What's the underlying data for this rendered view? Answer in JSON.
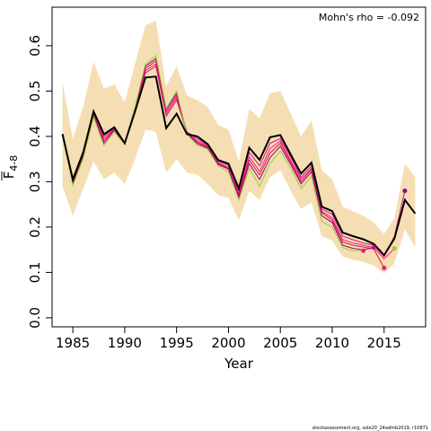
{
  "chart_data": {
    "type": "line",
    "ylabel_main": "F",
    "ylabel_sub": "4-8",
    "xlabel": "Year",
    "annotation": "Mohn's rho = -0.092",
    "footer": "stockassessment.org, sole20_24admb2019, r10871",
    "xlim": [
      1983,
      2019
    ],
    "ylim": [
      -0.02,
      0.685
    ],
    "x_ticks": [
      1985,
      1990,
      1995,
      2000,
      2005,
      2010,
      2015
    ],
    "y_ticks": [
      0.0,
      0.1,
      0.2,
      0.3,
      0.4,
      0.5,
      0.6
    ],
    "x_tick_labels": [
      "1985",
      "1990",
      "1995",
      "2000",
      "2005",
      "2010",
      "2015"
    ],
    "y_tick_labels": [
      "0.0",
      "0.1",
      "0.2",
      "0.3",
      "0.4",
      "0.5",
      "0.6"
    ],
    "colors": {
      "band": "#F5DEB3",
      "main": "#000000",
      "peels": [
        "#C71585",
        "#FF1493",
        "#DC143C",
        "#8B008B",
        "#9ACD32",
        "#E0218A"
      ]
    },
    "ci_band": {
      "x": [
        1984,
        1985,
        1986,
        1987,
        1988,
        1989,
        1990,
        1991,
        1992,
        1993,
        1994,
        1995,
        1996,
        1997,
        1998,
        1999,
        2000,
        2001,
        2002,
        2003,
        2004,
        2005,
        2006,
        2007,
        2008,
        2009,
        2010,
        2011,
        2012,
        2013,
        2014,
        2015,
        2016,
        2017,
        2018
      ],
      "upper": [
        0.52,
        0.395,
        0.465,
        0.565,
        0.505,
        0.515,
        0.475,
        0.56,
        0.645,
        0.655,
        0.51,
        0.555,
        0.49,
        0.48,
        0.465,
        0.425,
        0.415,
        0.345,
        0.46,
        0.44,
        0.495,
        0.5,
        0.45,
        0.4,
        0.435,
        0.325,
        0.305,
        0.245,
        0.235,
        0.225,
        0.21,
        0.185,
        0.22,
        0.34,
        0.31
      ],
      "lower": [
        0.29,
        0.225,
        0.285,
        0.345,
        0.305,
        0.32,
        0.295,
        0.35,
        0.415,
        0.41,
        0.32,
        0.35,
        0.32,
        0.315,
        0.295,
        0.27,
        0.265,
        0.215,
        0.28,
        0.26,
        0.31,
        0.325,
        0.28,
        0.24,
        0.255,
        0.18,
        0.17,
        0.135,
        0.128,
        0.123,
        0.115,
        0.098,
        0.12,
        0.195,
        0.155
      ]
    },
    "series": [
      {
        "x": [
          1984,
          1985,
          1986,
          1987,
          1988,
          1989,
          1990,
          1991,
          1992,
          1993,
          1994,
          1995,
          1996,
          1997,
          1998,
          1999,
          2000,
          2001,
          2002,
          2003,
          2004,
          2005,
          2006,
          2007,
          2008,
          2009,
          2010,
          2011,
          2012,
          2013,
          2014,
          2015,
          2016,
          2017,
          2018
        ],
        "values": [
          0.405,
          0.305,
          0.365,
          0.455,
          0.405,
          0.42,
          0.385,
          0.455,
          0.53,
          0.532,
          0.418,
          0.45,
          0.405,
          0.4,
          0.383,
          0.348,
          0.34,
          0.285,
          0.375,
          0.348,
          0.398,
          0.403,
          0.36,
          0.318,
          0.342,
          0.245,
          0.235,
          0.188,
          0.18,
          0.173,
          0.163,
          0.138,
          0.175,
          0.26,
          0.23
        ]
      },
      {
        "x": [
          1984,
          1985,
          1986,
          1987,
          1988,
          1989,
          1990,
          1991,
          1992,
          1993,
          1994,
          1995,
          1996,
          1997,
          1998,
          1999,
          2000,
          2001,
          2002,
          2003,
          2004,
          2005,
          2006,
          2007,
          2008,
          2009,
          2010,
          2011,
          2012,
          2013,
          2014,
          2015,
          2016,
          2017
        ],
        "values": [
          0.405,
          0.3,
          0.36,
          0.45,
          0.4,
          0.42,
          0.385,
          0.46,
          0.54,
          0.555,
          0.445,
          0.48,
          0.41,
          0.395,
          0.38,
          0.345,
          0.337,
          0.28,
          0.365,
          0.335,
          0.385,
          0.395,
          0.355,
          0.31,
          0.335,
          0.24,
          0.228,
          0.18,
          0.172,
          0.165,
          0.16,
          0.135,
          0.18,
          0.28
        ]
      },
      {
        "x": [
          1984,
          1985,
          1986,
          1987,
          1988,
          1989,
          1990,
          1991,
          1992,
          1993,
          1994,
          1995,
          1996,
          1997,
          1998,
          1999,
          2000,
          2001,
          2002,
          2003,
          2004,
          2005,
          2006,
          2007,
          2008,
          2009,
          2010,
          2011,
          2012,
          2013,
          2014,
          2015,
          2016
        ],
        "values": [
          0.405,
          0.302,
          0.362,
          0.452,
          0.395,
          0.418,
          0.385,
          0.462,
          0.545,
          0.56,
          0.45,
          0.485,
          0.41,
          0.39,
          0.378,
          0.342,
          0.333,
          0.275,
          0.355,
          0.323,
          0.373,
          0.39,
          0.348,
          0.305,
          0.33,
          0.235,
          0.22,
          0.172,
          0.165,
          0.16,
          0.155,
          0.13,
          0.153
        ]
      },
      {
        "x": [
          1984,
          1985,
          1986,
          1987,
          1988,
          1989,
          1990,
          1991,
          1992,
          1993,
          1994,
          1995,
          1996,
          1997,
          1998,
          1999,
          2000,
          2001,
          2002,
          2003,
          2004,
          2005,
          2006,
          2007,
          2008,
          2009,
          2010,
          2011,
          2012,
          2013,
          2014,
          2015
        ],
        "values": [
          0.405,
          0.298,
          0.358,
          0.448,
          0.39,
          0.416,
          0.384,
          0.463,
          0.55,
          0.567,
          0.455,
          0.49,
          0.408,
          0.387,
          0.376,
          0.34,
          0.33,
          0.27,
          0.348,
          0.315,
          0.363,
          0.385,
          0.343,
          0.3,
          0.327,
          0.232,
          0.215,
          0.167,
          0.16,
          0.156,
          0.152,
          0.11
        ]
      },
      {
        "x": [
          1984,
          1985,
          1986,
          1987,
          1988,
          1989,
          1990,
          1991,
          1992,
          1993,
          1994,
          1995,
          1996,
          1997,
          1998,
          1999,
          2000,
          2001,
          2002,
          2003,
          2004,
          2005,
          2006,
          2007,
          2008,
          2009,
          2010,
          2011,
          2012,
          2013,
          2014
        ],
        "values": [
          0.405,
          0.296,
          0.356,
          0.446,
          0.385,
          0.414,
          0.383,
          0.464,
          0.555,
          0.572,
          0.46,
          0.495,
          0.407,
          0.384,
          0.374,
          0.338,
          0.328,
          0.266,
          0.34,
          0.305,
          0.353,
          0.378,
          0.338,
          0.295,
          0.322,
          0.225,
          0.21,
          0.16,
          0.153,
          0.15,
          0.155
        ]
      },
      {
        "x": [
          1984,
          1985,
          1986,
          1987,
          1988,
          1989,
          1990,
          1991,
          1992,
          1993,
          1994,
          1995,
          1996,
          1997,
          1998,
          1999,
          2000,
          2001,
          2002,
          2003,
          2004,
          2005,
          2006,
          2007,
          2008,
          2009,
          2010,
          2011,
          2012,
          2013
        ],
        "values": [
          0.405,
          0.292,
          0.352,
          0.443,
          0.38,
          0.41,
          0.382,
          0.465,
          0.56,
          0.578,
          0.462,
          0.5,
          0.405,
          0.38,
          0.372,
          0.335,
          0.322,
          0.26,
          0.33,
          0.29,
          0.34,
          0.368,
          0.33,
          0.285,
          0.312,
          0.212,
          0.2,
          0.155,
          0.148,
          0.148
        ]
      }
    ],
    "end_points": [
      {
        "x": 2017,
        "y": 0.28
      },
      {
        "x": 2016,
        "y": 0.153
      },
      {
        "x": 2015,
        "y": 0.11
      },
      {
        "x": 2014,
        "y": 0.155
      },
      {
        "x": 2013,
        "y": 0.148
      }
    ]
  }
}
